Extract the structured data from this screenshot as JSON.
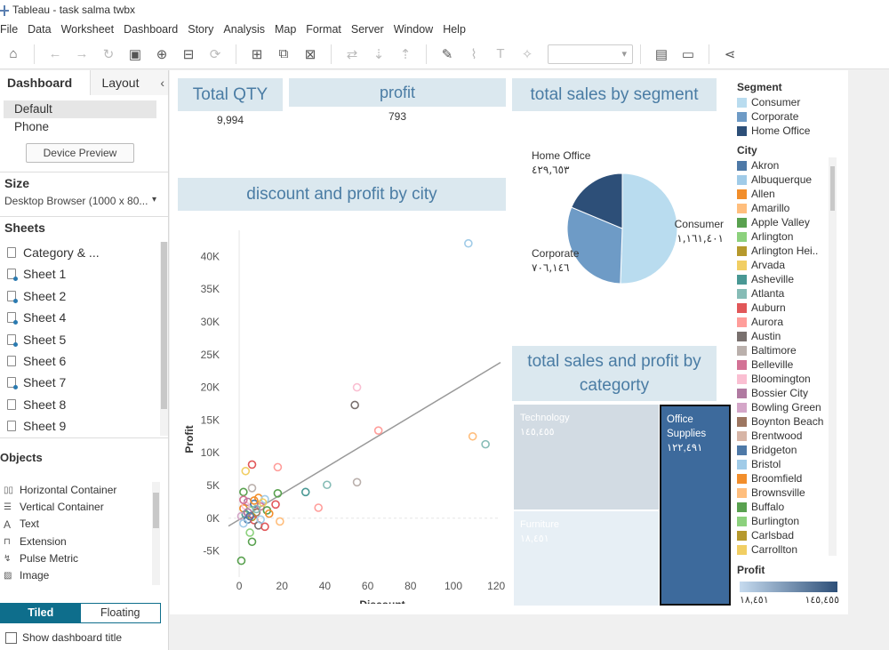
{
  "window": {
    "title": "Tableau - task salma twbx"
  },
  "menu": [
    "File",
    "Data",
    "Worksheet",
    "Dashboard",
    "Story",
    "Analysis",
    "Map",
    "Format",
    "Server",
    "Window",
    "Help"
  ],
  "left_pane": {
    "tab_dashboard": "Dashboard",
    "tab_layout": "Layout",
    "devices": [
      "Default",
      "Phone"
    ],
    "device_preview": "Device Preview",
    "size_heading": "Size",
    "size_value": "Desktop Browser (1000 x 80...",
    "sheets_heading": "Sheets",
    "sheets": [
      "Category & ...",
      "Sheet 1",
      "Sheet 2",
      "Sheet 4",
      "Sheet 5",
      "Sheet 6",
      "Sheet 7",
      "Sheet 8",
      "Sheet 9"
    ],
    "objects_heading": "Objects",
    "objects": [
      "Horizontal Container",
      "Vertical Container",
      "Text",
      "Extension",
      "Pulse Metric",
      "Image"
    ],
    "tiled": "Tiled",
    "floating": "Floating",
    "show_title": "Show dashboard title"
  },
  "kpis": {
    "total_qty_title": "Total QTY",
    "total_qty_value": "9,994",
    "profit_title": "profit",
    "profit_value": "793"
  },
  "segment_title": "total sales by segment",
  "scatter_title": "discount and profit by city",
  "treemap_title": "total sales and profit by categorty",
  "treemap": {
    "tech_label": "Technology",
    "tech_value": "١٤٥,٤٥٥",
    "furn_label": "Furniture",
    "furn_value": "١٨,٤٥١",
    "office_label": "Office Supplies",
    "office_value": "١٢٢,٤٩١"
  },
  "legend": {
    "segment_heading": "Segment",
    "segments": [
      {
        "name": "Consumer",
        "color": "#b9dcef"
      },
      {
        "name": "Corporate",
        "color": "#6e9bc6"
      },
      {
        "name": "Home Office",
        "color": "#2d4f78"
      }
    ],
    "city_heading": "City",
    "cities": [
      {
        "name": "Akron",
        "color": "#4e79a7"
      },
      {
        "name": "Albuquerque",
        "color": "#a0cbe8"
      },
      {
        "name": "Allen",
        "color": "#f28e2b"
      },
      {
        "name": "Amarillo",
        "color": "#ffbe7d"
      },
      {
        "name": "Apple Valley",
        "color": "#59a14f"
      },
      {
        "name": "Arlington",
        "color": "#8cd17d"
      },
      {
        "name": "Arlington Hei..",
        "color": "#b6992d"
      },
      {
        "name": "Arvada",
        "color": "#f1ce63"
      },
      {
        "name": "Asheville",
        "color": "#499894"
      },
      {
        "name": "Atlanta",
        "color": "#86bcb6"
      },
      {
        "name": "Auburn",
        "color": "#e15759"
      },
      {
        "name": "Aurora",
        "color": "#ff9d9a"
      },
      {
        "name": "Austin",
        "color": "#79706e"
      },
      {
        "name": "Baltimore",
        "color": "#bab0ac"
      },
      {
        "name": "Belleville",
        "color": "#d37295"
      },
      {
        "name": "Bloomington",
        "color": "#fabfd2"
      },
      {
        "name": "Bossier City",
        "color": "#b07aa1"
      },
      {
        "name": "Bowling Green",
        "color": "#d4a6c8"
      },
      {
        "name": "Boynton Beach",
        "color": "#9d7660"
      },
      {
        "name": "Brentwood",
        "color": "#d7b5a6"
      },
      {
        "name": "Bridgeton",
        "color": "#4e79a7"
      },
      {
        "name": "Bristol",
        "color": "#a0cbe8"
      },
      {
        "name": "Broomfield",
        "color": "#f28e2b"
      },
      {
        "name": "Brownsville",
        "color": "#ffbe7d"
      },
      {
        "name": "Buffalo",
        "color": "#59a14f"
      },
      {
        "name": "Burlington",
        "color": "#8cd17d"
      },
      {
        "name": "Carlsbad",
        "color": "#b6992d"
      },
      {
        "name": "Carrollton",
        "color": "#f1ce63"
      }
    ],
    "profit_heading": "Profit",
    "profit_min": "١٨,٤٥١",
    "profit_max": "١٤٥,٤٥٥",
    "profit_color_low": "#c6dbef",
    "profit_color_high": "#2d4f78"
  },
  "chart_data": [
    {
      "type": "pie",
      "title": "total sales by segment",
      "slices": [
        {
          "name": "Consumer",
          "label": "Consumer",
          "value_label": "١,١٦١,٤٠١",
          "value": 1161401,
          "color": "#b9dcef"
        },
        {
          "name": "Corporate",
          "label": "Corporate",
          "value_label": "٧٠٦,١٤٦",
          "value": 706146,
          "color": "#6e9bc6"
        },
        {
          "name": "Home Office",
          "label": "Home Office",
          "value_label": "٤٢٩,٦٥٣",
          "value": 429653,
          "color": "#2d4f78"
        }
      ]
    },
    {
      "type": "scatter",
      "title": "discount and profit by city",
      "xlabel": "Discount",
      "ylabel": "Profit",
      "xlim": [
        -5,
        122
      ],
      "ylim": [
        -9000,
        44000
      ],
      "xticks": [
        0,
        20,
        40,
        60,
        80,
        100,
        120
      ],
      "yticks": [
        -5000,
        0,
        5000,
        10000,
        15000,
        20000,
        25000,
        30000,
        35000,
        40000
      ],
      "ytick_labels": [
        "-5K",
        "0K",
        "5K",
        "10K",
        "15K",
        "20K",
        "25K",
        "30K",
        "35K",
        "40K"
      ],
      "trend_line": {
        "x": [
          -5,
          122
        ],
        "y": [
          -1200,
          23800
        ]
      },
      "points": [
        {
          "x": 107,
          "y": 42000,
          "color": "#a0cbe8"
        },
        {
          "x": 55,
          "y": 20000,
          "color": "#fabfd2"
        },
        {
          "x": 54,
          "y": 17300,
          "color": "#79706e"
        },
        {
          "x": 65,
          "y": 13400,
          "color": "#ff9d9a"
        },
        {
          "x": 109,
          "y": 12500,
          "color": "#ffbe7d"
        },
        {
          "x": 115,
          "y": 11300,
          "color": "#86bcb6"
        },
        {
          "x": 6,
          "y": 8200,
          "color": "#e15759"
        },
        {
          "x": 18,
          "y": 7800,
          "color": "#ff9d9a"
        },
        {
          "x": 3,
          "y": 7200,
          "color": "#f1ce63"
        },
        {
          "x": 55,
          "y": 5500,
          "color": "#bab0ac"
        },
        {
          "x": 41,
          "y": 5100,
          "color": "#86bcb6"
        },
        {
          "x": 6,
          "y": 4600,
          "color": "#bab0ac"
        },
        {
          "x": 31,
          "y": 4000,
          "color": "#499894"
        },
        {
          "x": 2,
          "y": 4000,
          "color": "#59a14f"
        },
        {
          "x": 18,
          "y": 3800,
          "color": "#59a14f"
        },
        {
          "x": 9,
          "y": 3100,
          "color": "#f28e2b"
        },
        {
          "x": 12,
          "y": 2900,
          "color": "#a0cbe8"
        },
        {
          "x": 17,
          "y": 2100,
          "color": "#e15759"
        },
        {
          "x": 37,
          "y": 1600,
          "color": "#ff9d9a"
        },
        {
          "x": 4,
          "y": 2500,
          "color": "#b07aa1"
        },
        {
          "x": 7,
          "y": 2200,
          "color": "#4e79a7"
        },
        {
          "x": 10,
          "y": 1800,
          "color": "#d37295"
        },
        {
          "x": 2,
          "y": 1500,
          "color": "#f28e2b"
        },
        {
          "x": 5,
          "y": 1200,
          "color": "#8cd17d"
        },
        {
          "x": 8,
          "y": 900,
          "color": "#9d7660"
        },
        {
          "x": 3,
          "y": 600,
          "color": "#499894"
        },
        {
          "x": 1,
          "y": 300,
          "color": "#d4a6c8"
        },
        {
          "x": 6,
          "y": 200,
          "color": "#b6992d"
        },
        {
          "x": 13,
          "y": 1200,
          "color": "#59a14f"
        },
        {
          "x": 4,
          "y": -200,
          "color": "#4e79a7"
        },
        {
          "x": 7,
          "y": -300,
          "color": "#e15759"
        },
        {
          "x": 2,
          "y": -800,
          "color": "#a0cbe8"
        },
        {
          "x": 9,
          "y": -1100,
          "color": "#79706e"
        },
        {
          "x": 19,
          "y": -500,
          "color": "#ffbe7d"
        },
        {
          "x": 12,
          "y": -1300,
          "color": "#e15759"
        },
        {
          "x": 5,
          "y": -2200,
          "color": "#8cd17d"
        },
        {
          "x": 6,
          "y": -3600,
          "color": "#59a14f"
        },
        {
          "x": 1,
          "y": -6500,
          "color": "#59a14f"
        },
        {
          "x": 3,
          "y": 1900,
          "color": "#fabfd2"
        },
        {
          "x": 11,
          "y": 2400,
          "color": "#f1ce63"
        },
        {
          "x": 8,
          "y": 1400,
          "color": "#86bcb6"
        },
        {
          "x": 14,
          "y": 700,
          "color": "#f28e2b"
        },
        {
          "x": 4,
          "y": 900,
          "color": "#b07aa1"
        },
        {
          "x": 10,
          "y": -200,
          "color": "#a0cbe8"
        },
        {
          "x": 2,
          "y": 2800,
          "color": "#d37295"
        },
        {
          "x": 5,
          "y": 300,
          "color": "#4e79a7"
        },
        {
          "x": 7,
          "y": 2700,
          "color": "#f28e2b"
        }
      ]
    },
    {
      "type": "treemap",
      "title": "total sales and profit by categorty",
      "cells": [
        {
          "label": "Technology",
          "value_label": "١٤٥,٤٥٥"
        },
        {
          "label": "Furniture",
          "value_label": "١٨,٤٥١"
        },
        {
          "label": "Office Supplies",
          "value_label": "١٢٢,٤٩١"
        }
      ]
    }
  ]
}
